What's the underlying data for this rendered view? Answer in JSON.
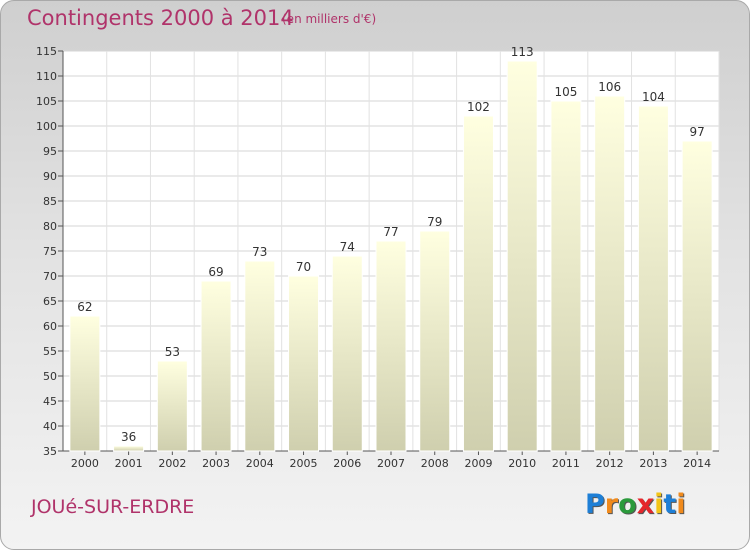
{
  "header": {
    "title": "Contingents 2000 à 2014",
    "subtitle": "(en milliers d'€)"
  },
  "footer": {
    "commune": "JOUé-SUR-ERDRE",
    "logo_text": "Proxiti",
    "logo_colors": [
      "#1e7fd6",
      "#f08a1c",
      "#2b9a3c",
      "#e5262b",
      "#f3c417",
      "#1e7fd6",
      "#f08a1c"
    ]
  },
  "colors": {
    "accent": "#b0336a",
    "bar_top": "#ffffe0",
    "bar_bottom": "#cfcfae"
  },
  "chart_data": {
    "type": "bar",
    "categories": [
      "2000",
      "2001",
      "2002",
      "2003",
      "2004",
      "2005",
      "2006",
      "2007",
      "2008",
      "2009",
      "2010",
      "2011",
      "2012",
      "2013",
      "2014"
    ],
    "values": [
      62,
      36,
      53,
      69,
      73,
      70,
      74,
      77,
      79,
      102,
      113,
      105,
      106,
      104,
      97
    ],
    "title": "Contingents 2000 à 2014",
    "subtitle": "(en milliers d'€)",
    "xlabel": "",
    "ylabel": "",
    "ylim": [
      35,
      115
    ],
    "yticks": [
      35,
      40,
      45,
      50,
      55,
      60,
      65,
      70,
      75,
      80,
      85,
      90,
      95,
      100,
      105,
      110,
      115
    ],
    "grid": true,
    "legend": "none"
  }
}
